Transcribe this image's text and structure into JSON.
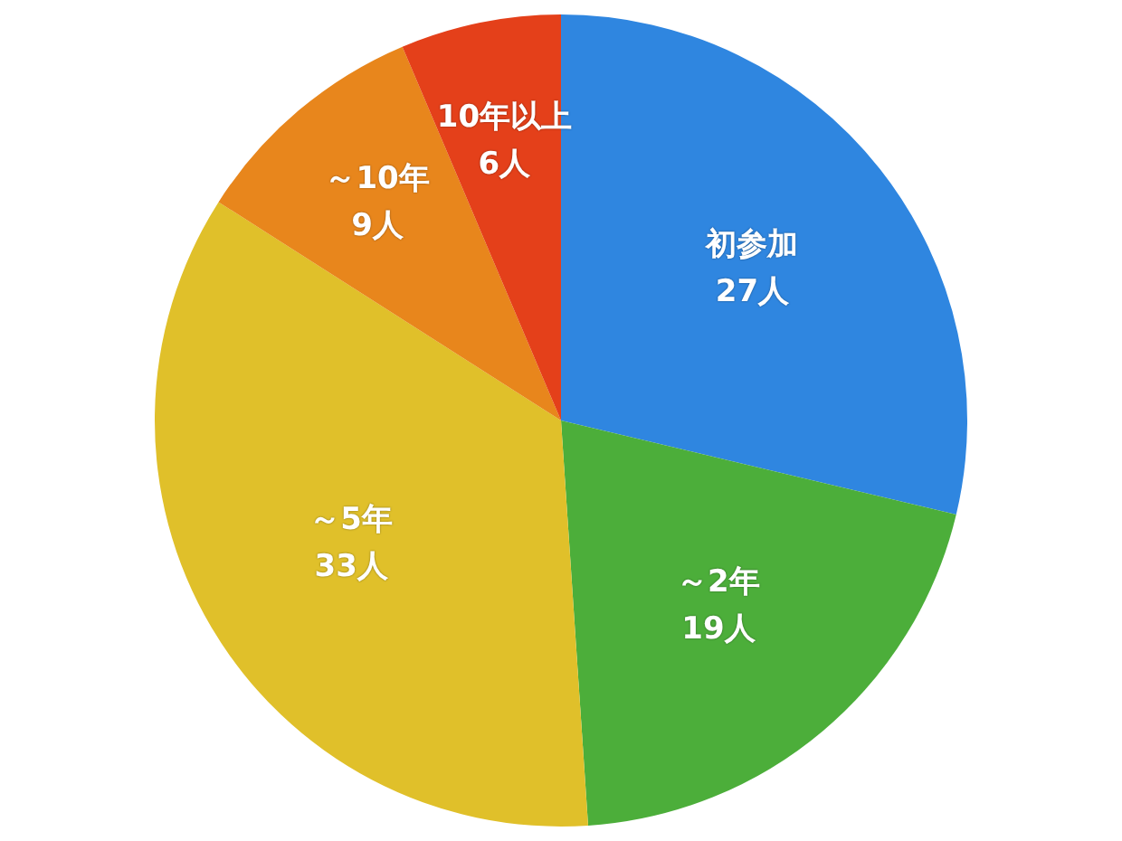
{
  "chart_data": {
    "type": "pie",
    "categories": [
      "初参加",
      "～2年",
      "～5年",
      "～10年",
      "10年以上"
    ],
    "values": [
      27,
      19,
      33,
      9,
      6
    ],
    "value_labels": [
      "27人",
      "19人",
      "33人",
      "9人",
      "6人"
    ],
    "colors": [
      "#2f86e0",
      "#4cae3a",
      "#e0c02a",
      "#e8861c",
      "#e4401a"
    ],
    "legend": false
  }
}
